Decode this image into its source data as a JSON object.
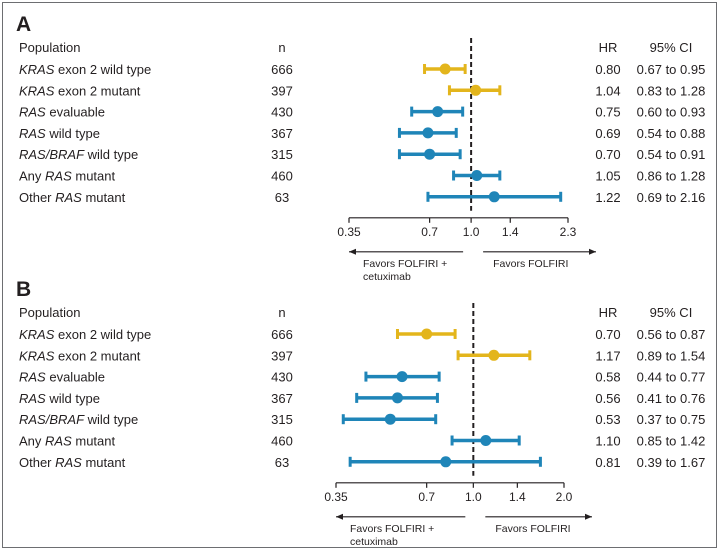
{
  "colors": {
    "gold": "#e3b51c",
    "blue": "#1f85b8",
    "text": "#231f20"
  },
  "headers": {
    "population": "Population",
    "n": "n",
    "hr": "HR",
    "ci": "95% CI"
  },
  "favors": {
    "left_line1": "Favors FOLFIRI +",
    "left_line2": "cetuximab",
    "right": "Favors FOLFIRI"
  },
  "chart_data": [
    {
      "type": "forest",
      "panel": "A",
      "xscale": "log",
      "xlim": [
        0.35,
        2.3
      ],
      "xticks": [
        "0.35",
        "0.7",
        "1.0",
        "1.4",
        "2.3"
      ],
      "reference_line": 1.0,
      "rows": [
        {
          "pre": "",
          "ital": "KRAS",
          "post": " exon 2 wild type",
          "n": "666",
          "hr": 0.8,
          "lo": 0.67,
          "hi": 0.95,
          "hr_text": "0.80",
          "ci_text": "0.67 to 0.95",
          "color": "gold"
        },
        {
          "pre": "",
          "ital": "KRAS",
          "post": " exon 2 mutant",
          "n": "397",
          "hr": 1.04,
          "lo": 0.83,
          "hi": 1.28,
          "hr_text": "1.04",
          "ci_text": "0.83 to 1.28",
          "color": "gold"
        },
        {
          "pre": "",
          "ital": "RAS",
          "post": " evaluable",
          "n": "430",
          "hr": 0.75,
          "lo": 0.6,
          "hi": 0.93,
          "hr_text": "0.75",
          "ci_text": "0.60 to 0.93",
          "color": "blue"
        },
        {
          "pre": "",
          "ital": "RAS",
          "post": " wild type",
          "n": "367",
          "hr": 0.69,
          "lo": 0.54,
          "hi": 0.88,
          "hr_text": "0.69",
          "ci_text": "0.54 to 0.88",
          "color": "blue"
        },
        {
          "pre": "",
          "ital": "RAS/BRAF",
          "post": " wild type",
          "n": "315",
          "hr": 0.7,
          "lo": 0.54,
          "hi": 0.91,
          "hr_text": "0.70",
          "ci_text": "0.54 to 0.91",
          "color": "blue"
        },
        {
          "pre": "Any ",
          "ital": "RAS",
          "post": " mutant",
          "n": "460",
          "hr": 1.05,
          "lo": 0.86,
          "hi": 1.28,
          "hr_text": "1.05",
          "ci_text": "0.86 to 1.28",
          "color": "blue"
        },
        {
          "pre": "Other ",
          "ital": "RAS",
          "post": " mutant",
          "n": "63",
          "hr": 1.22,
          "lo": 0.69,
          "hi": 2.16,
          "hr_text": "1.22",
          "ci_text": "0.69 to 2.16",
          "color": "blue"
        }
      ]
    },
    {
      "type": "forest",
      "panel": "B",
      "xscale": "log",
      "xlim": [
        0.35,
        2.0
      ],
      "xticks": [
        "0.35",
        "0.7",
        "1.0",
        "1.4",
        "2.0"
      ],
      "reference_line": 1.0,
      "rows": [
        {
          "pre": "",
          "ital": "KRAS",
          "post": " exon 2 wild type",
          "n": "666",
          "hr": 0.7,
          "lo": 0.56,
          "hi": 0.87,
          "hr_text": "0.70",
          "ci_text": "0.56 to 0.87",
          "color": "gold"
        },
        {
          "pre": "",
          "ital": "KRAS",
          "post": " exon 2 mutant",
          "n": "397",
          "hr": 1.17,
          "lo": 0.89,
          "hi": 1.54,
          "hr_text": "1.17",
          "ci_text": "0.89 to 1.54",
          "color": "gold"
        },
        {
          "pre": "",
          "ital": "RAS",
          "post": " evaluable",
          "n": "430",
          "hr": 0.58,
          "lo": 0.44,
          "hi": 0.77,
          "hr_text": "0.58",
          "ci_text": "0.44 to 0.77",
          "color": "blue"
        },
        {
          "pre": "",
          "ital": "RAS",
          "post": " wild type",
          "n": "367",
          "hr": 0.56,
          "lo": 0.41,
          "hi": 0.76,
          "hr_text": "0.56",
          "ci_text": "0.41 to 0.76",
          "color": "blue"
        },
        {
          "pre": "",
          "ital": "RAS/BRAF",
          "post": " wild type",
          "n": "315",
          "hr": 0.53,
          "lo": 0.37,
          "hi": 0.75,
          "hr_text": "0.53",
          "ci_text": "0.37 to 0.75",
          "color": "blue"
        },
        {
          "pre": "Any ",
          "ital": "RAS",
          "post": " mutant",
          "n": "460",
          "hr": 1.1,
          "lo": 0.85,
          "hi": 1.42,
          "hr_text": "1.10",
          "ci_text": "0.85 to 1.42",
          "color": "blue"
        },
        {
          "pre": "Other ",
          "ital": "RAS",
          "post": " mutant",
          "n": "63",
          "hr": 0.81,
          "lo": 0.39,
          "hi": 1.67,
          "hr_text": "0.81",
          "ci_text": "0.39 to 1.67",
          "color": "blue"
        }
      ]
    }
  ]
}
